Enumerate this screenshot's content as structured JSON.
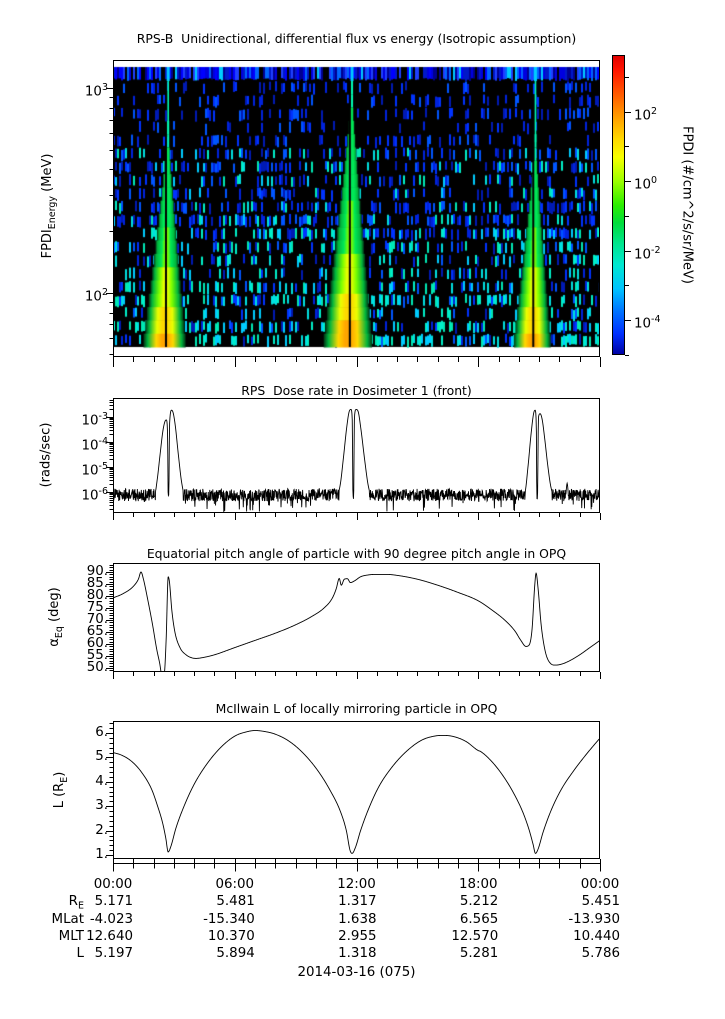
{
  "figure": {
    "bg": "#ffffff",
    "fg": "#000000",
    "date_label": "2014-03-16 (075)"
  },
  "time_axis": {
    "tick_hours": [
      0,
      6,
      12,
      18,
      24
    ],
    "labels": [
      "00:00",
      "06:00",
      "12:00",
      "18:00",
      "00:00"
    ],
    "minor_step_hours": 1,
    "range_hours": [
      0,
      24
    ]
  },
  "ephemeris_table": {
    "rows": [
      {
        "label_pre": "R",
        "label_sub": "E",
        "values": [
          "5.171",
          "5.481",
          "1.317",
          "5.212",
          "5.451"
        ]
      },
      {
        "label_pre": "MLat",
        "label_sub": "",
        "values": [
          "-4.023",
          "-15.340",
          "1.638",
          "6.565",
          "-13.930"
        ]
      },
      {
        "label_pre": "MLT",
        "label_sub": "",
        "values": [
          "12.640",
          "10.370",
          "2.955",
          "12.570",
          "10.440"
        ]
      },
      {
        "label_pre": "L",
        "label_sub": "",
        "values": [
          "5.197",
          "5.894",
          "1.318",
          "5.281",
          "5.786"
        ]
      }
    ]
  },
  "chart_data": [
    {
      "type": "heatmap",
      "title": "RPS-B  Unidirectional, differential flux vs energy (Isotropic assumption)",
      "ylabel": {
        "pre": "FPDI",
        "sub": "Energy",
        "post": " (MeV)"
      },
      "x_range_hours": [
        0,
        24
      ],
      "y_log_range_mev": [
        1.686,
        3.137
      ],
      "y_ticks": [
        {
          "exp": 3
        },
        {
          "exp": 2
        }
      ],
      "background_color": "#000000",
      "colorbar": {
        "label": "FPDI (#/cm^2/s/sr/MeV)",
        "ticks": [
          {
            "exp": 2
          },
          {
            "exp": 0
          },
          {
            "exp": -2
          },
          {
            "exp": -4
          }
        ],
        "log_range": [
          -5,
          3.63
        ],
        "gradient": [
          [
            0.0,
            "#e00000"
          ],
          [
            0.05,
            "#ff1400"
          ],
          [
            0.13,
            "#ff5a00"
          ],
          [
            0.21,
            "#ffa000"
          ],
          [
            0.28,
            "#ffd900"
          ],
          [
            0.34,
            "#f8ff00"
          ],
          [
            0.42,
            "#9dff00"
          ],
          [
            0.5,
            "#2dee00"
          ],
          [
            0.56,
            "#00dd3c"
          ],
          [
            0.63,
            "#00e68f"
          ],
          [
            0.7,
            "#00e8d2"
          ],
          [
            0.78,
            "#00c3ff"
          ],
          [
            0.855,
            "#0073ff"
          ],
          [
            0.93,
            "#0030ff"
          ],
          [
            1.0,
            "#0000a0"
          ]
        ]
      },
      "structure": {
        "top_band": {
          "blues": [
            "#0000e0",
            "#0000ff",
            "#0018c8",
            "#000090",
            "#2040ff",
            "#0066ff"
          ],
          "cyan": "#00ccff",
          "black_fraction": 0.14
        },
        "speckle": {
          "blue_set": [
            "#0033ff",
            "#0022dd",
            "#0055ff",
            "#001ab4"
          ],
          "cyan_set": [
            "#00e0e0",
            "#00f0c8",
            "#00ccff",
            "#00e8b4"
          ],
          "rows": 20,
          "base_density": 0.16,
          "density_per_row": 0.015
        },
        "plumes": [
          {
            "t_center": 2.72,
            "tip_frac": 0.17,
            "halfwidth_hours": 1.05
          },
          {
            "t_center": 11.78,
            "tip_frac": 0.02,
            "halfwidth_hours": 1.2
          },
          {
            "t_center": 20.82,
            "tip_frac": 0.2,
            "halfwidth_hours": 0.92
          }
        ],
        "core_colors": [
          "#00e857",
          "#7dff00",
          "#eaff00",
          "#ffd800",
          "#ffa500"
        ],
        "slit_color": "#000000",
        "center_line_color": "#00ffb4"
      }
    },
    {
      "type": "line",
      "title": "RPS  Dose rate in Dosimeter 1 (front)",
      "ylabel": "(rads/sec)",
      "y_log": true,
      "y_ticks": [
        {
          "exp": -3
        },
        {
          "exp": -4
        },
        {
          "exp": -5
        },
        {
          "exp": -6
        }
      ],
      "y_log_range": [
        -6.84,
        -2.24
      ],
      "line_color": "#000000",
      "baseline": {
        "level_log": -6.12,
        "noise_dec": 0.5,
        "dip_prob": 0.05,
        "dip_dec": 0.45,
        "seed": 1234
      },
      "keypoints_log": [
        [
          0,
          -6.15
        ],
        [
          0.8,
          -6.15
        ],
        [
          1.6,
          -6.15
        ],
        [
          2.05,
          -6.1
        ],
        [
          2.18,
          -5.5
        ],
        [
          2.32,
          -4.5
        ],
        [
          2.46,
          -3.55
        ],
        [
          2.56,
          -3.18
        ],
        [
          2.63,
          -3.12
        ],
        [
          2.69,
          -3.7
        ],
        [
          2.73,
          -7.6
        ],
        [
          2.79,
          -3.25
        ],
        [
          2.89,
          -2.73
        ],
        [
          2.97,
          -2.85
        ],
        [
          3.07,
          -3.35
        ],
        [
          3.22,
          -4.5
        ],
        [
          3.38,
          -5.6
        ],
        [
          3.55,
          -6.15
        ],
        [
          4.5,
          -6.15
        ],
        [
          6,
          -6.15
        ],
        [
          8,
          -6.15
        ],
        [
          10,
          -6.15
        ],
        [
          11.05,
          -6.1
        ],
        [
          11.2,
          -5.7
        ],
        [
          11.36,
          -4.6
        ],
        [
          11.52,
          -3.4
        ],
        [
          11.64,
          -2.78
        ],
        [
          11.73,
          -2.7
        ],
        [
          11.79,
          -3.1
        ],
        [
          11.84,
          -7.6
        ],
        [
          11.9,
          -3.0
        ],
        [
          11.98,
          -2.7
        ],
        [
          12.08,
          -2.78
        ],
        [
          12.22,
          -3.5
        ],
        [
          12.4,
          -4.7
        ],
        [
          12.58,
          -5.75
        ],
        [
          12.75,
          -6.15
        ],
        [
          14,
          -6.15
        ],
        [
          16,
          -6.15
        ],
        [
          18,
          -6.15
        ],
        [
          20,
          -6.15
        ],
        [
          20.3,
          -6.0
        ],
        [
          20.45,
          -5.0
        ],
        [
          20.6,
          -3.7
        ],
        [
          20.73,
          -2.85
        ],
        [
          20.8,
          -2.73
        ],
        [
          20.86,
          -3.3
        ],
        [
          20.9,
          -7.6
        ],
        [
          20.97,
          -3.0
        ],
        [
          21.05,
          -2.87
        ],
        [
          21.15,
          -3.1
        ],
        [
          21.28,
          -3.9
        ],
        [
          21.42,
          -4.9
        ],
        [
          21.58,
          -5.8
        ],
        [
          21.75,
          -6.15
        ],
        [
          22.3,
          -6.15
        ],
        [
          22.38,
          -5.65
        ],
        [
          22.46,
          -6.15
        ],
        [
          23.2,
          -6.15
        ],
        [
          24,
          -6.15
        ]
      ]
    },
    {
      "type": "line",
      "title": "Equatorial pitch angle of particle with 90 degree pitch angle in OPQ",
      "ylabel": {
        "pre": "α",
        "sub": "Eq",
        "post": " (deg)"
      },
      "y_range": [
        48.33,
        93.75
      ],
      "y_ticks": [
        {
          "v": 90,
          "label": "90."
        },
        {
          "v": 85,
          "label": "85."
        },
        {
          "v": 80,
          "label": "80."
        },
        {
          "v": 75,
          "label": "75."
        },
        {
          "v": 70,
          "label": "70."
        },
        {
          "v": 65,
          "label": "65."
        },
        {
          "v": 60,
          "label": "60."
        },
        {
          "v": 55,
          "label": "55."
        },
        {
          "v": 50,
          "label": "50."
        }
      ],
      "y_minor_step": 1,
      "line_color": "#000000",
      "keypoints": [
        [
          0,
          79.2
        ],
        [
          0.5,
          81
        ],
        [
          1,
          84
        ],
        [
          1.25,
          87
        ],
        [
          1.38,
          90
        ],
        [
          1.5,
          87
        ],
        [
          1.7,
          79
        ],
        [
          1.95,
          68
        ],
        [
          2.15,
          58
        ],
        [
          2.3,
          52
        ],
        [
          2.4,
          47.5
        ],
        [
          2.52,
          47.5
        ],
        [
          2.62,
          62
        ],
        [
          2.72,
          88
        ],
        [
          2.78,
          86
        ],
        [
          2.9,
          74
        ],
        [
          3.05,
          65
        ],
        [
          3.3,
          58.5
        ],
        [
          3.6,
          55.5
        ],
        [
          3.9,
          54.2
        ],
        [
          4.1,
          54
        ],
        [
          4.4,
          54.3
        ],
        [
          5,
          55.5
        ],
        [
          6,
          58.5
        ],
        [
          7,
          61.5
        ],
        [
          8,
          64.5
        ],
        [
          9,
          68
        ],
        [
          9.8,
          71.5
        ],
        [
          10.4,
          75
        ],
        [
          10.8,
          79
        ],
        [
          11.0,
          83
        ],
        [
          11.15,
          87.3
        ],
        [
          11.25,
          84.5
        ],
        [
          11.4,
          87
        ],
        [
          11.55,
          87.2
        ],
        [
          11.7,
          85.6
        ],
        [
          11.9,
          86.3
        ],
        [
          12.2,
          88
        ],
        [
          12.6,
          88.8
        ],
        [
          13,
          89
        ],
        [
          13.5,
          89
        ],
        [
          14,
          88.6
        ],
        [
          15,
          87
        ],
        [
          16,
          84.5
        ],
        [
          17,
          81.5
        ],
        [
          18,
          78
        ],
        [
          18.7,
          74
        ],
        [
          19.3,
          70
        ],
        [
          19.8,
          65.5
        ],
        [
          20.1,
          61.5
        ],
        [
          20.35,
          59
        ],
        [
          20.5,
          59.5
        ],
        [
          20.65,
          66
        ],
        [
          20.78,
          84
        ],
        [
          20.85,
          89.5
        ],
        [
          20.95,
          83
        ],
        [
          21.1,
          68
        ],
        [
          21.3,
          57
        ],
        [
          21.55,
          52
        ],
        [
          21.8,
          51.2
        ],
        [
          22.1,
          51.6
        ],
        [
          22.5,
          53
        ],
        [
          23,
          55.5
        ],
        [
          23.5,
          58.5
        ],
        [
          24,
          61.5
        ]
      ]
    },
    {
      "type": "line",
      "title": "McIlwain L of locally mirroring particle in OPQ",
      "ylabel": {
        "pre": "L (R",
        "sub": "E",
        "post": ")"
      },
      "y_range": [
        0.84,
        6.49
      ],
      "y_ticks": [
        {
          "v": 6,
          "label": "6."
        },
        {
          "v": 5,
          "label": "5."
        },
        {
          "v": 4,
          "label": "4."
        },
        {
          "v": 3,
          "label": "3."
        },
        {
          "v": 2,
          "label": "2."
        },
        {
          "v": 1,
          "label": "1."
        }
      ],
      "y_minor_step": 0.2,
      "line_color": "#000000",
      "keypoints": [
        [
          0,
          5.2
        ],
        [
          0.4,
          5.1
        ],
        [
          0.9,
          4.85
        ],
        [
          1.4,
          4.4
        ],
        [
          1.9,
          3.7
        ],
        [
          2.2,
          3.0
        ],
        [
          2.45,
          2.3
        ],
        [
          2.6,
          1.7
        ],
        [
          2.72,
          1.13
        ],
        [
          2.85,
          1.35
        ],
        [
          3.1,
          2.1
        ],
        [
          3.5,
          3.0
        ],
        [
          4,
          3.9
        ],
        [
          4.6,
          4.7
        ],
        [
          5.3,
          5.4
        ],
        [
          6,
          5.87
        ],
        [
          6.6,
          6.05
        ],
        [
          7,
          6.1
        ],
        [
          7.4,
          6.07
        ],
        [
          8,
          5.95
        ],
        [
          8.7,
          5.65
        ],
        [
          9.4,
          5.15
        ],
        [
          10.1,
          4.45
        ],
        [
          10.7,
          3.65
        ],
        [
          11.2,
          2.8
        ],
        [
          11.5,
          2.0
        ],
        [
          11.68,
          1.2
        ],
        [
          11.78,
          1.07
        ],
        [
          11.95,
          1.32
        ],
        [
          12.2,
          2.0
        ],
        [
          12.6,
          2.9
        ],
        [
          13.1,
          3.8
        ],
        [
          13.7,
          4.55
        ],
        [
          14.4,
          5.2
        ],
        [
          15.2,
          5.7
        ],
        [
          15.9,
          5.88
        ],
        [
          16.3,
          5.9
        ],
        [
          16.8,
          5.85
        ],
        [
          17.4,
          5.65
        ],
        [
          18,
          5.28
        ],
        [
          18.1,
          5.25
        ],
        [
          18.7,
          4.8
        ],
        [
          19.3,
          4.15
        ],
        [
          19.8,
          3.45
        ],
        [
          20.2,
          2.75
        ],
        [
          20.5,
          2.05
        ],
        [
          20.7,
          1.45
        ],
        [
          20.82,
          1.07
        ],
        [
          20.95,
          1.25
        ],
        [
          21.2,
          1.95
        ],
        [
          21.6,
          2.85
        ],
        [
          22.1,
          3.7
        ],
        [
          22.7,
          4.45
        ],
        [
          23.3,
          5.1
        ],
        [
          23.7,
          5.5
        ],
        [
          24,
          5.79
        ]
      ]
    }
  ]
}
